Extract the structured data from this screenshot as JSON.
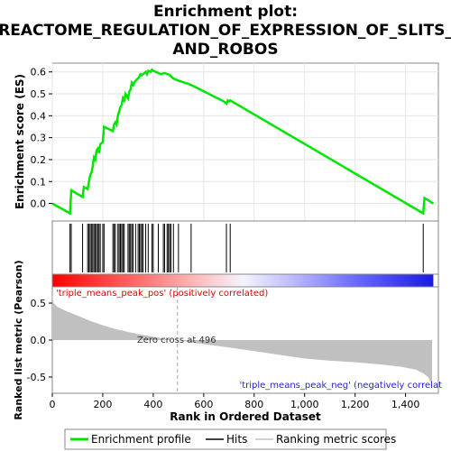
{
  "chart_data": {
    "type": "line",
    "title_lines": [
      "Enrichment plot:",
      "REACTOME_REGULATION_OF_EXPRESSION_OF_SLITS_",
      "AND_ROBOS"
    ],
    "es_panel": {
      "ylabel": "Enrichment score (ES)",
      "ylim": [
        -0.08,
        0.64
      ],
      "yticks": [
        0.0,
        0.1,
        0.2,
        0.3,
        0.4,
        0.5,
        0.6
      ],
      "ytick_labels": [
        "0.0",
        "0.1",
        "0.2",
        "0.3",
        "0.4",
        "0.5",
        "0.6"
      ],
      "series": {
        "name": "Enrichment profile",
        "color": "#00e600",
        "x": [
          0,
          70,
          75,
          120,
          125,
          140,
          145,
          150,
          155,
          160,
          165,
          170,
          175,
          180,
          185,
          190,
          200,
          205,
          240,
          245,
          250,
          255,
          260,
          265,
          270,
          275,
          280,
          285,
          290,
          300,
          305,
          310,
          315,
          320,
          330,
          340,
          345,
          350,
          355,
          360,
          370,
          375,
          380,
          390,
          395,
          400,
          410,
          420,
          430,
          445,
          455,
          460,
          465,
          470,
          480,
          500,
          540,
          560,
          680,
          690,
          695,
          700,
          705,
          1470,
          1475,
          1510
        ],
        "y": [
          0.0,
          -0.045,
          0.06,
          0.03,
          0.075,
          0.065,
          0.1,
          0.13,
          0.14,
          0.17,
          0.21,
          0.2,
          0.24,
          0.25,
          0.23,
          0.27,
          0.28,
          0.35,
          0.33,
          0.36,
          0.37,
          0.36,
          0.4,
          0.42,
          0.44,
          0.45,
          0.48,
          0.47,
          0.5,
          0.48,
          0.51,
          0.52,
          0.55,
          0.54,
          0.56,
          0.57,
          0.58,
          0.59,
          0.585,
          0.59,
          0.6,
          0.59,
          0.605,
          0.6,
          0.61,
          0.605,
          0.6,
          0.595,
          0.59,
          0.595,
          0.59,
          0.59,
          0.585,
          0.58,
          0.57,
          0.56,
          0.545,
          0.535,
          0.465,
          0.455,
          0.47,
          0.465,
          0.47,
          -0.045,
          0.025,
          0.0
        ]
      }
    },
    "hits": {
      "name": "Hits",
      "positions": [
        70,
        75,
        120,
        140,
        145,
        150,
        155,
        160,
        165,
        170,
        175,
        180,
        185,
        190,
        200,
        205,
        240,
        245,
        250,
        260,
        265,
        270,
        275,
        280,
        285,
        300,
        305,
        310,
        315,
        320,
        330,
        340,
        345,
        350,
        355,
        360,
        370,
        380,
        395,
        400,
        420,
        440,
        445,
        455,
        460,
        465,
        470,
        480,
        500,
        550,
        690,
        705,
        1470
      ]
    },
    "rank_metric": {
      "name": "Ranking metric scores",
      "ylabel": "Ranked list metric (Pearson)",
      "ylim": [
        -0.72,
        0.72
      ],
      "yticks": [
        0.5,
        0.0,
        -0.5
      ],
      "ytick_labels": [
        "0.5",
        "0.0",
        "-0.5"
      ],
      "x": [
        0,
        5,
        20,
        50,
        100,
        150,
        200,
        250,
        300,
        350,
        400,
        450,
        496,
        550,
        600,
        700,
        800,
        900,
        1000,
        1100,
        1200,
        1300,
        1380,
        1440,
        1470,
        1490,
        1505
      ],
      "y": [
        0.62,
        0.5,
        0.45,
        0.4,
        0.33,
        0.26,
        0.2,
        0.15,
        0.11,
        0.075,
        0.045,
        0.015,
        0.0,
        -0.03,
        -0.055,
        -0.1,
        -0.15,
        -0.2,
        -0.25,
        -0.28,
        -0.3,
        -0.33,
        -0.36,
        -0.4,
        -0.45,
        -0.5,
        -0.62
      ]
    },
    "xaxis": {
      "label": "Rank in Ordered Dataset",
      "xlim": [
        0,
        1530
      ],
      "ticks": [
        0,
        200,
        400,
        600,
        800,
        1000,
        1200,
        1400
      ],
      "tick_labels": [
        "0",
        "200",
        "400",
        "600",
        "800",
        "1,000",
        "1,200",
        "1,400"
      ]
    },
    "annotations": {
      "pos_label": "'triple_means_peak_pos' (positively correlated)",
      "pos_color": "#dd0000",
      "neg_label": "'triple_means_peak_neg' (negatively correlat",
      "neg_color": "#2222dd",
      "zero_cross": "Zero cross at 496",
      "zero_cross_rank": 496
    },
    "legend": {
      "items": [
        {
          "label": "Enrichment profile",
          "color": "#00e600"
        },
        {
          "label": "Hits",
          "color": "#000000"
        },
        {
          "label": "Ranking metric scores",
          "color": "#c0c0c0"
        }
      ]
    },
    "colorbar": {
      "stops": [
        "#ff0000",
        "#ff6060",
        "#ffbbbb",
        "#f4f4ff",
        "#c0c0ff",
        "#6868ff",
        "#1a1ae0"
      ],
      "n_ranks": 1510
    }
  }
}
